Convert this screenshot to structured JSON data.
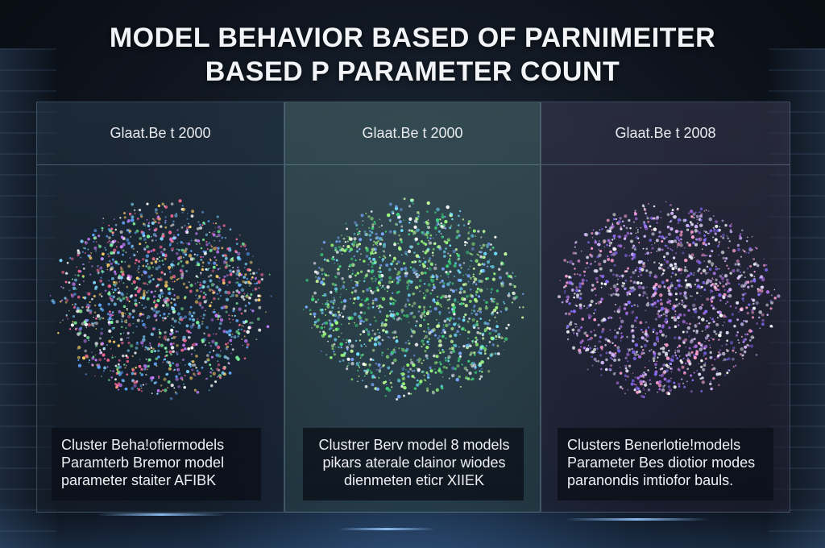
{
  "title": {
    "line1": "MODEL BEHAVIOR BASED OF PARNIMEITER",
    "line2": "BASED P PARAMETER COUNT"
  },
  "panels": [
    {
      "header": "Glaat.Be t 2000",
      "cluster_colors": [
        "#ffffff",
        "#7fd4ff",
        "#c77dff",
        "#ff6b9a",
        "#7cf59a",
        "#ffd166",
        "#5fa8ff"
      ],
      "caption": [
        "Cluster Beha!ofiermodels",
        "Paramterb Bremor model",
        "parameter staiter AFIBK"
      ]
    },
    {
      "header": "Glaat.Be t 2000",
      "cluster_colors": [
        "#9cff7a",
        "#ffffff",
        "#6fe0ff",
        "#3cd67a",
        "#c9ff9e",
        "#7aa8ff"
      ],
      "caption": [
        "Clustrer Berv model 8 models",
        "pikars aterale clainor wiodes",
        "dienmeten eticr XIIEK"
      ]
    },
    {
      "header": "Glaat.Be t 2008",
      "cluster_colors": [
        "#ffffff",
        "#d6b8ff",
        "#b070e8",
        "#ff9fd0",
        "#e8e0ff",
        "#8a6cff"
      ],
      "caption": [
        "Clusters Benerlotie!models",
        "Parameter Bes diotior modes",
        "paranondis imtiofor bauls."
      ]
    }
  ]
}
